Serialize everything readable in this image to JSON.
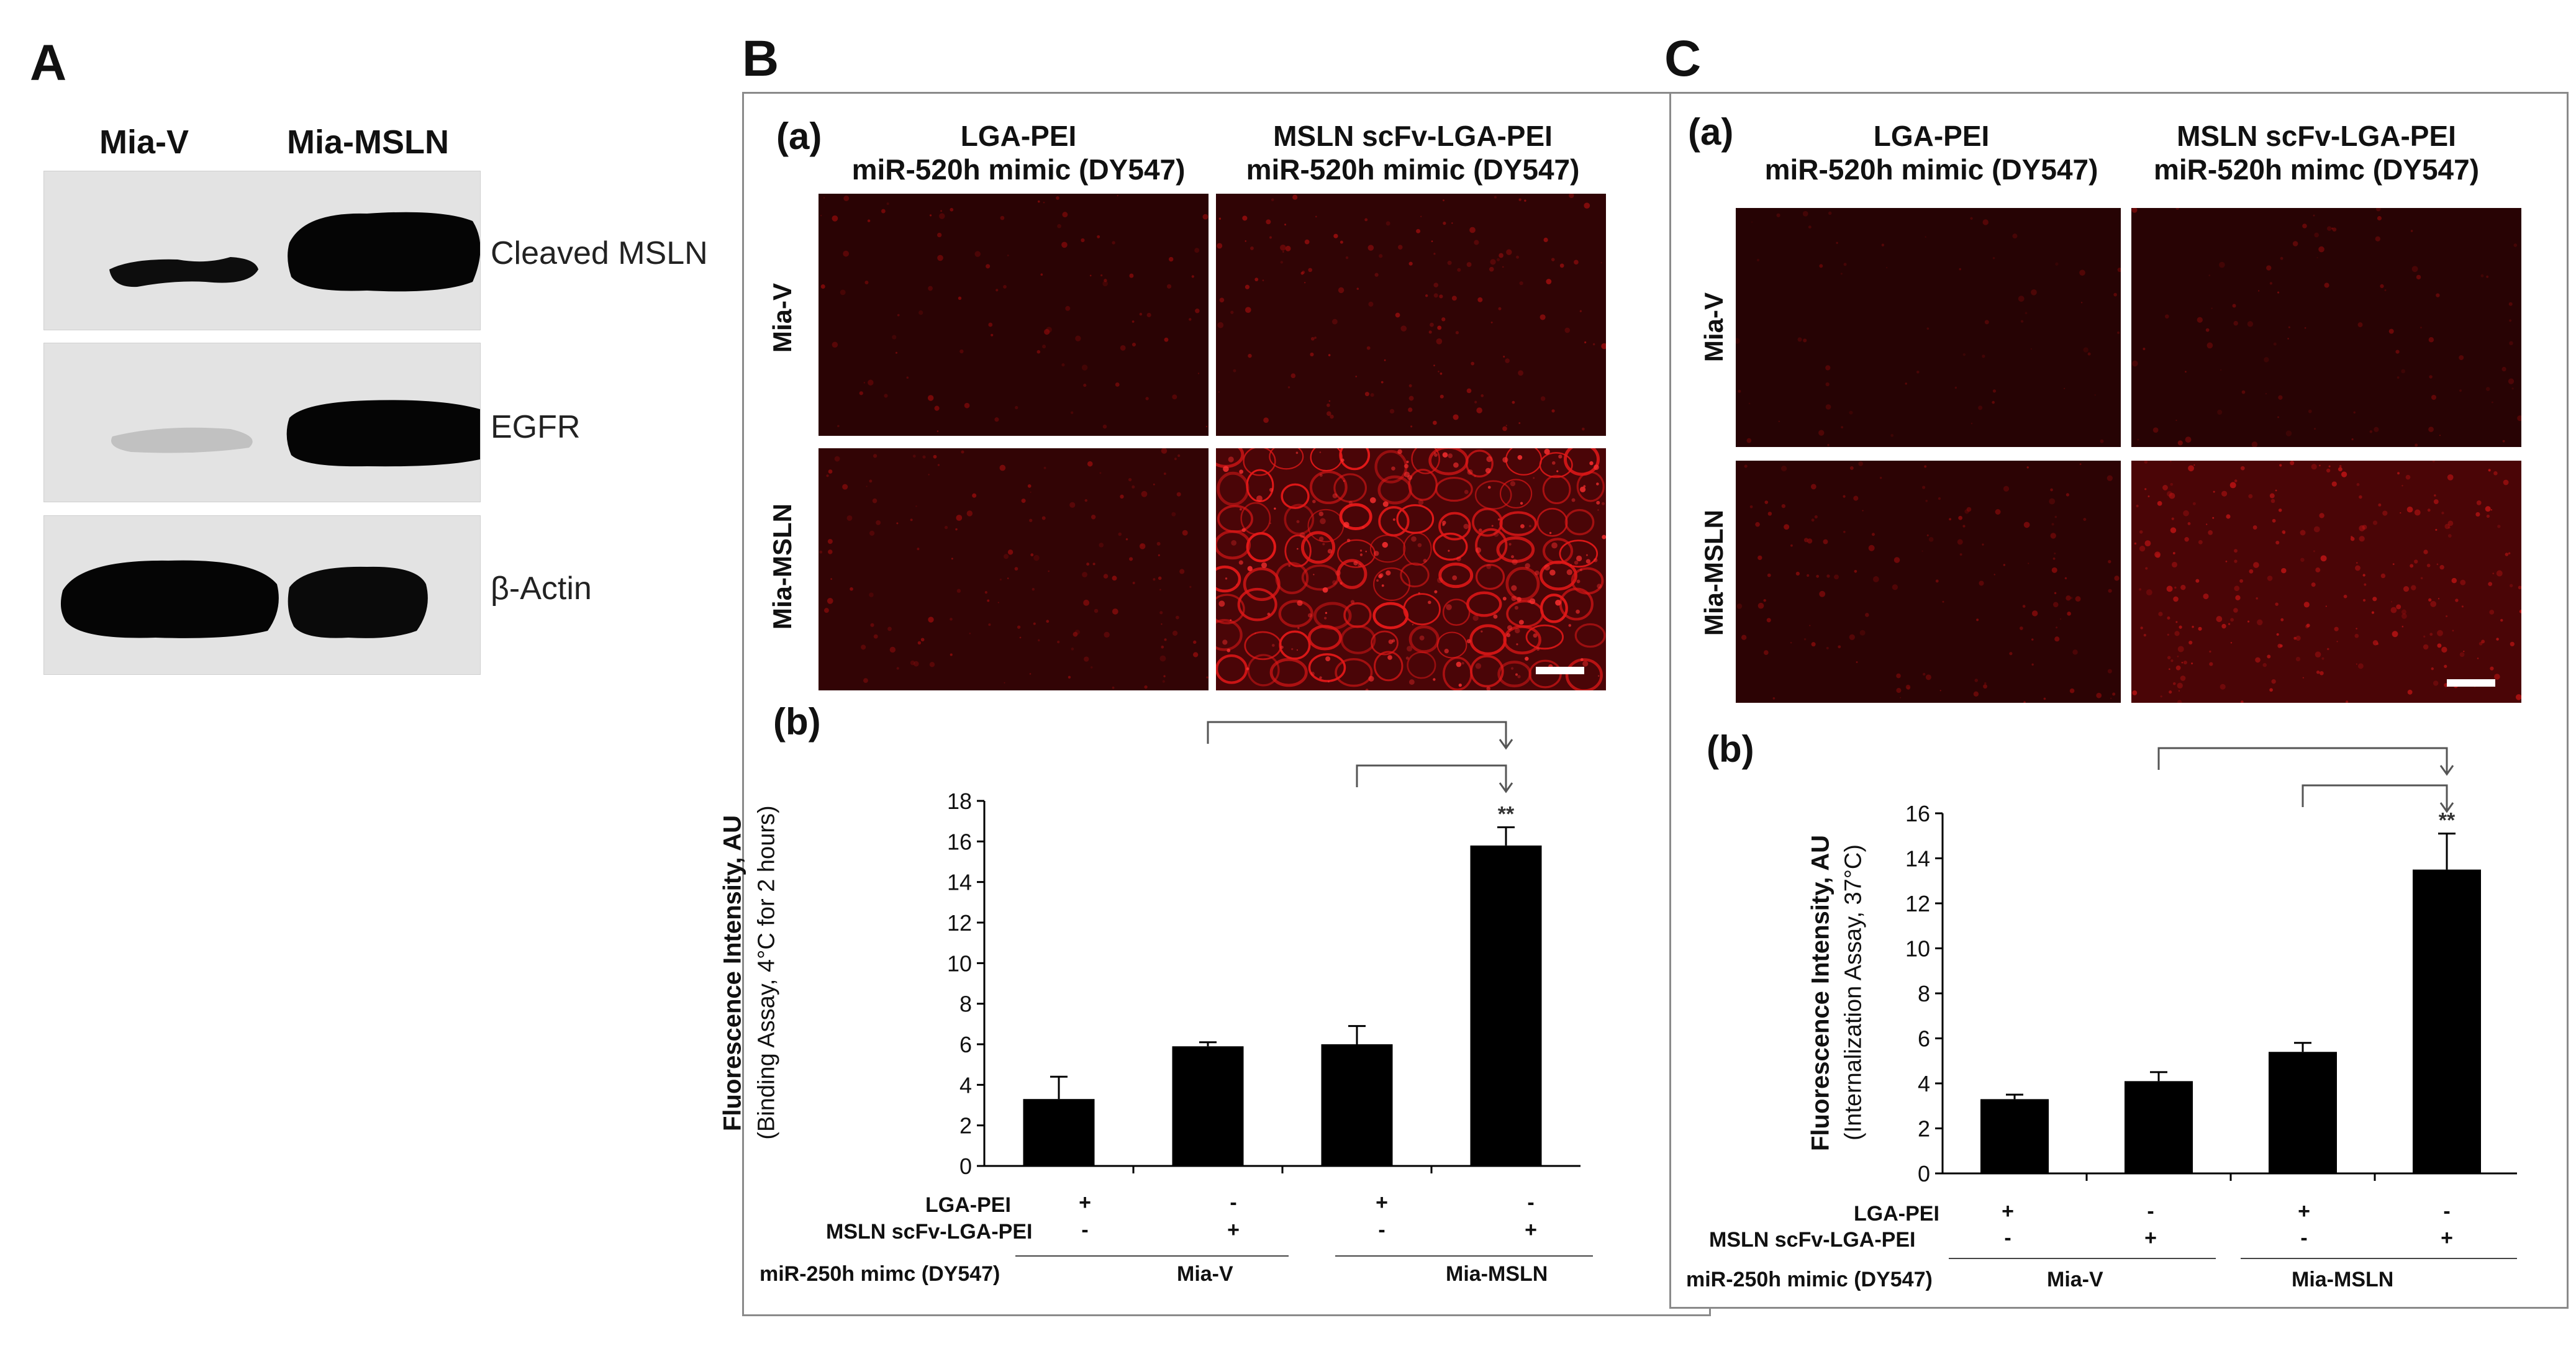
{
  "panels": {
    "A": {
      "label": "A",
      "lanes": [
        "Mia-V",
        "Mia-MSLN"
      ],
      "blots": [
        {
          "name": "Cleaved MSLN",
          "band_intensity": [
            0.55,
            1.0
          ]
        },
        {
          "name": "EGFR",
          "band_intensity": [
            0.12,
            1.0
          ]
        },
        {
          "name": "β-Actin",
          "band_intensity": [
            1.0,
            0.75
          ]
        }
      ]
    },
    "B": {
      "label": "B",
      "sub_a": "(a)",
      "sub_b": "(b)",
      "col_titles": [
        {
          "line1": "LGA-PEI",
          "line2": "miR-520h mimic (DY547)"
        },
        {
          "line1": "MSLN scFv-LGA-PEI",
          "line2": "miR-520h mimic (DY547)"
        }
      ],
      "row_labels": [
        "Mia-V",
        "Mia-MSLN"
      ],
      "ylabel": "Fluorescence Intensity, AU",
      "ylabel2": "(Binding Assay, 4°C for 2 hours)",
      "row1_label": "LGA-PEI",
      "row2_label": "MSLN scFv-LGA-PEI",
      "row3_label": "miR-250h mimc (DY547)",
      "group1": "Mia-V",
      "group2": "Mia-MSLN",
      "row1_signs": [
        "+",
        "-",
        "+",
        "-"
      ],
      "row2_signs": [
        "-",
        "+",
        "-",
        "+"
      ],
      "significance": "**"
    },
    "C": {
      "label": "C",
      "sub_a": "(a)",
      "sub_b": "(b)",
      "col_titles": [
        {
          "line1": "LGA-PEI",
          "line2": "miR-520h mimic (DY547)"
        },
        {
          "line1": "MSLN scFv-LGA-PEI",
          "line2": "miR-520h mimc (DY547)"
        }
      ],
      "row_labels": [
        "Mia-V",
        "Mia-MSLN"
      ],
      "ylabel": "Fluorescence Intensity, AU",
      "ylabel2": "(Internalization Assay, 37°C)",
      "row1_label": "LGA-PEI",
      "row2_label": "MSLN scFv-LGA-PEI",
      "row3_label": "miR-250h mimic (DY547)",
      "group1": "Mia-V",
      "group2": "Mia-MSLN",
      "row1_signs": [
        "+",
        "-",
        "+",
        "-"
      ],
      "row2_signs": [
        "-",
        "+",
        "-",
        "+"
      ],
      "significance": "**"
    }
  },
  "chart_data": [
    {
      "type": "bar",
      "panel": "B(b)",
      "categories": [
        "1",
        "2",
        "3",
        "4"
      ],
      "values": [
        3.3,
        5.9,
        6.0,
        15.8
      ],
      "errors": [
        1.1,
        0.2,
        0.9,
        0.9
      ],
      "ylim": [
        0,
        18
      ],
      "yticks": [
        0,
        2,
        4,
        6,
        8,
        10,
        12,
        14,
        16,
        18
      ],
      "bar_color": "#000000"
    },
    {
      "type": "bar",
      "panel": "C(b)",
      "categories": [
        "1",
        "2",
        "3",
        "4"
      ],
      "values": [
        3.3,
        4.1,
        5.4,
        13.5
      ],
      "errors": [
        0.2,
        0.4,
        0.4,
        1.6
      ],
      "ylim": [
        0,
        16
      ],
      "yticks": [
        0,
        2,
        4,
        6,
        8,
        10,
        12,
        14,
        16
      ],
      "bar_color": "#000000"
    }
  ]
}
